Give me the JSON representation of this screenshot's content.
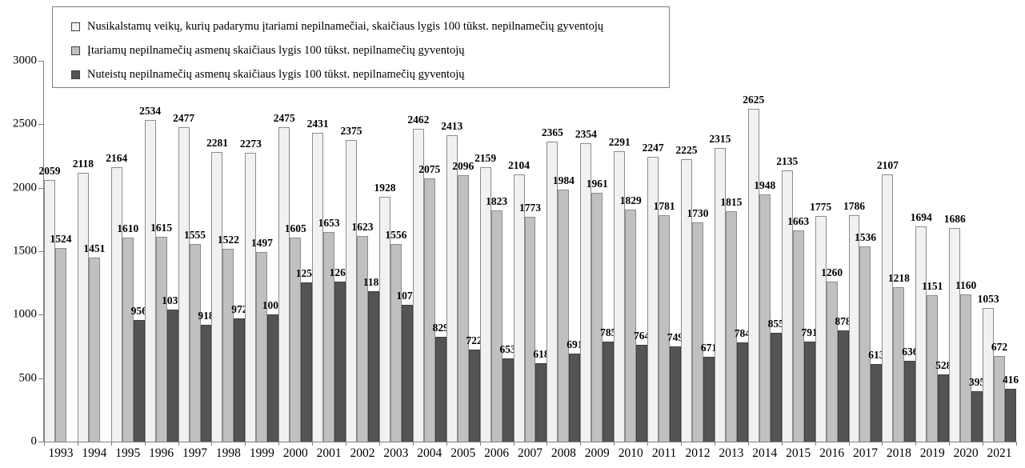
{
  "chart_data": {
    "type": "bar",
    "title": "",
    "xlabel": "",
    "ylabel": "",
    "ylim": [
      0,
      3000
    ],
    "y_ticks": [
      0,
      500,
      1000,
      1500,
      2000,
      2500,
      3000
    ],
    "grid": false,
    "legend_position": "top-left-overlay",
    "show_value_labels": true,
    "categories": [
      "1993",
      "1994",
      "1995",
      "1996",
      "1997",
      "1998",
      "1999",
      "2000",
      "2001",
      "2002",
      "2003",
      "2004",
      "2005",
      "2006",
      "2007",
      "2008",
      "2009",
      "2010",
      "2011",
      "2012",
      "2013",
      "2014",
      "2015",
      "2016",
      "2017",
      "2018",
      "2019",
      "2020",
      "2021"
    ],
    "series": [
      {
        "name": "Nusikalstamų veikų, kurių padarymu įtariami nepilnamečiai, skaičiaus lygis 100 tūkst. nepilnamečių gyventojų",
        "color": "#f1f1f1",
        "border_color": "#8c8c8c",
        "values": [
          2059,
          2118,
          2164,
          2534,
          2477,
          2281,
          2273,
          2475,
          2431,
          2375,
          1928,
          2462,
          2413,
          2159,
          2104,
          2365,
          2354,
          2291,
          2247,
          2225,
          2315,
          2625,
          2135,
          1775,
          1786,
          2107,
          1694,
          1686,
          1053
        ]
      },
      {
        "name": "Įtariamų nepilnamečių asmenų skaičiaus lygis 100 tūkst. nepilnamečių gyventojų",
        "color": "#c0c0c0",
        "border_color": "#8c8c8c",
        "values": [
          1524,
          1451,
          1610,
          1615,
          1555,
          1522,
          1497,
          1605,
          1653,
          1623,
          1556,
          2075,
          2096,
          1823,
          1773,
          1984,
          1961,
          1829,
          1781,
          1730,
          1815,
          1948,
          1663,
          1260,
          1536,
          1218,
          1151,
          1160,
          672
        ]
      },
      {
        "name": "Nuteistų nepilnamečių asmenų skaičiaus lygis 100 tūkst. nepilnamečių gyventojų",
        "color": "#545454",
        "border_color": "#3f3f3f",
        "values": [
          null,
          null,
          956,
          1039,
          918,
          972,
          1004,
          1255,
          1261,
          1185,
          1078,
          829,
          722,
          653,
          618,
          691,
          785,
          764,
          749,
          671,
          784,
          855,
          791,
          878,
          613,
          636,
          528,
          395,
          416
        ]
      }
    ]
  },
  "colors": {
    "background": "#ffffff",
    "axis": "#7f7f7f",
    "text": "#000000",
    "legend_border": "#7f7f7f"
  }
}
